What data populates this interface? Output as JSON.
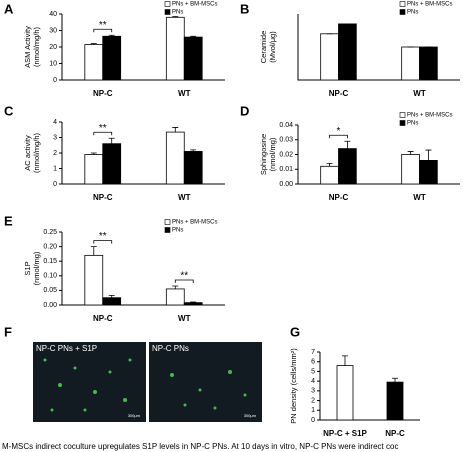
{
  "chart_data": [
    {
      "type": "bar",
      "label": "A",
      "ylabel": "ASM Activity\n(nmol/mg/h)",
      "categories": [
        "NP-C",
        "WT"
      ],
      "series": [
        {
          "name": "PNs + BM-MSCs",
          "color": "#ffffff",
          "values": [
            21.5,
            38
          ],
          "errors": [
            0.6,
            0.5
          ]
        },
        {
          "name": "PNs",
          "color": "#000000",
          "values": [
            26.5,
            26
          ],
          "errors": [
            0.6,
            0.5
          ]
        }
      ],
      "annotations": [
        "**",
        null
      ],
      "ylim": [
        0,
        40
      ],
      "yticks": [
        0,
        10,
        20,
        30,
        40
      ],
      "legend": "upper right"
    },
    {
      "type": "bar",
      "label": "B",
      "ylabel": "Ceramide\n(Mvol/μg)",
      "categories": [
        "NP-C",
        "WT"
      ],
      "series": [
        {
          "name": "PNs + BM-MSCs",
          "color": "#ffffff",
          "values": [
            14,
            10
          ],
          "errors": [
            0,
            0
          ]
        },
        {
          "name": "PNs",
          "color": "#000000",
          "values": [
            17,
            10
          ],
          "errors": [
            0,
            0
          ]
        }
      ],
      "annotations": [
        null,
        null
      ],
      "ylim": [
        0,
        20
      ],
      "legend": "upper right"
    },
    {
      "type": "bar",
      "label": "C",
      "ylabel": "AC activity\n(nmol/mg/h)",
      "categories": [
        "NP-C",
        "WT"
      ],
      "series": [
        {
          "name": "PNs + BM-MSCs",
          "color": "#ffffff",
          "values": [
            1.9,
            3.35
          ],
          "errors": [
            0.1,
            0.3
          ]
        },
        {
          "name": "PNs",
          "color": "#000000",
          "values": [
            2.6,
            2.1
          ],
          "errors": [
            0.35,
            0.1
          ]
        }
      ],
      "annotations": [
        "**",
        null
      ],
      "ylim": [
        0,
        4
      ],
      "yticks": [
        0,
        1,
        2,
        3,
        4
      ],
      "legend": null
    },
    {
      "type": "bar",
      "label": "D",
      "ylabel": "Sphingosine\n(nmol/mg)",
      "categories": [
        "NP-C",
        "WT"
      ],
      "series": [
        {
          "name": "PNs + BM-MSCs",
          "color": "#ffffff",
          "values": [
            0.012,
            0.02
          ],
          "errors": [
            0.002,
            0.002
          ]
        },
        {
          "name": "PNs",
          "color": "#000000",
          "values": [
            0.024,
            0.016
          ],
          "errors": [
            0.005,
            0.007
          ]
        }
      ],
      "annotations": [
        "*",
        null
      ],
      "ylim": [
        0,
        0.04
      ],
      "yticks": [
        {
          "value": 0,
          "label": "0.00"
        },
        0.01,
        0.02,
        0.03,
        0.04
      ],
      "legend": "upper right"
    },
    {
      "type": "bar",
      "label": "E",
      "ylabel": "S1P\n(nmol/mg)",
      "categories": [
        "NP-C",
        "WT"
      ],
      "series": [
        {
          "name": "PNs + BM-MSCs",
          "color": "#ffffff",
          "values": [
            0.17,
            0.055
          ],
          "errors": [
            0.03,
            0.01
          ]
        },
        {
          "name": "PNs",
          "color": "#000000",
          "values": [
            0.025,
            0.008
          ],
          "errors": [
            0.008,
            0.002
          ]
        }
      ],
      "annotations": [
        "**",
        "**"
      ],
      "ylim": [
        0,
        0.25
      ],
      "yticks": [
        {
          "value": 0,
          "label": "0.00"
        },
        0.05,
        {
          "value": 0.1,
          "label": "0.10"
        },
        0.15,
        {
          "value": 0.2,
          "label": "0.20"
        },
        0.25
      ],
      "legend": "upper right"
    },
    {
      "type": "bar",
      "label": "G",
      "ylabel": "PN density (cells/mm²)",
      "categories": [
        "NP-C + S1P",
        "NP-C"
      ],
      "series": [
        {
          "colors": [
            "#ffffff",
            "#000000"
          ],
          "values": [
            5.6,
            3.9
          ],
          "errors": [
            1.0,
            0.4
          ]
        }
      ],
      "ylim": [
        0,
        7
      ],
      "yticks": [
        0,
        1,
        2,
        3,
        4,
        5,
        6,
        7
      ],
      "legend": null
    }
  ],
  "figure_f": {
    "label": "F",
    "panels": [
      "NP-C  PNs + S1P",
      "NP-C PNs"
    ],
    "scale": "300μm"
  },
  "caption": "M-MSCs indirect coculture upregulates S1P levels in NP-C PNs. At 10 days in vitro, NP-C PNs were indirect coc"
}
